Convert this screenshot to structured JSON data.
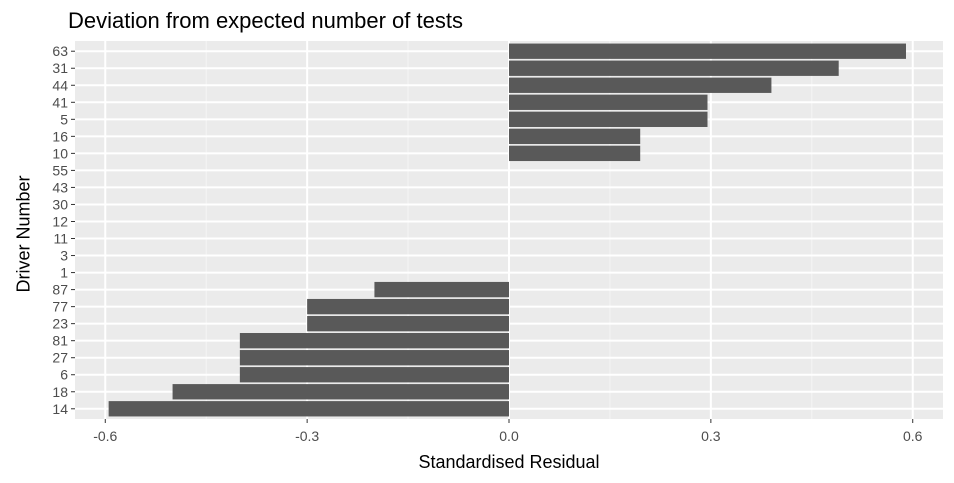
{
  "chart_data": {
    "type": "bar",
    "orientation": "horizontal",
    "title": "Deviation from expected number of tests",
    "xlabel": "Standardised Residual",
    "ylabel": "Driver Number",
    "categories": [
      "63",
      "31",
      "44",
      "41",
      "5",
      "16",
      "10",
      "55",
      "43",
      "30",
      "12",
      "11",
      "3",
      "1",
      "87",
      "77",
      "23",
      "81",
      "27",
      "6",
      "18",
      "14"
    ],
    "values": [
      0.59,
      0.49,
      0.39,
      0.295,
      0.295,
      0.195,
      0.195,
      0,
      0,
      0,
      0,
      0,
      0,
      0,
      -0.2,
      -0.3,
      -0.3,
      -0.4,
      -0.4,
      -0.4,
      -0.5,
      -0.595
    ],
    "xlim": [
      -0.645,
      0.645
    ],
    "xticks": [
      -0.6,
      -0.3,
      0.0,
      0.3,
      0.6
    ],
    "xtick_labels": [
      "-0.6",
      "-0.3",
      "0.0",
      "0.3",
      "0.6"
    ],
    "grid": true,
    "colors": {
      "bar": "#595959",
      "panel": "#ebebeb",
      "grid_major": "#ffffff",
      "grid_minor": "#f5f5f5"
    }
  }
}
